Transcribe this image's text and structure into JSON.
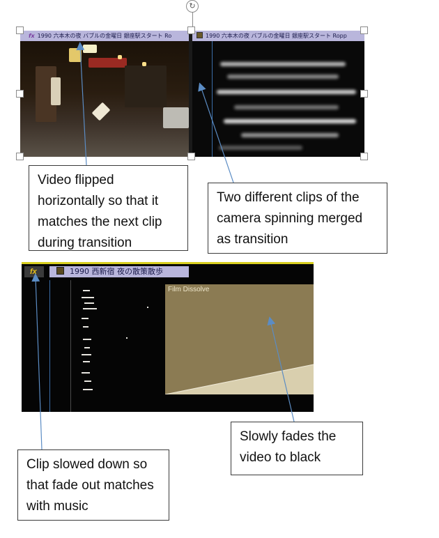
{
  "top_clips": {
    "clip_a_title": "1990 六本木の夜 バブルの金曜日 銀座駅スタート Ro",
    "clip_a_badge": "fx",
    "clip_b_title": "1990 六本木の夜 バブルの金曜日 銀座駅スタート Ropp"
  },
  "bottom_clip": {
    "fx_badge": "fx",
    "title": "1990 西新宿 夜の散策散歩",
    "transition_label": "Film Dissolve"
  },
  "annotations": {
    "flip": "Video flipped horizontally so that it matches the next clip during transition",
    "merge": "Two different clips of the camera spinning merged as transition",
    "slow": "Clip slowed down so that fade out matches with music",
    "fade": "Slowly fades the video to black"
  },
  "colors": {
    "clip_title_bar": "#b9b6dc",
    "fx_yellow": "#e8c11a",
    "dissolve_fill": "#8b7b53",
    "arrow_blue": "#5b8cc4"
  }
}
